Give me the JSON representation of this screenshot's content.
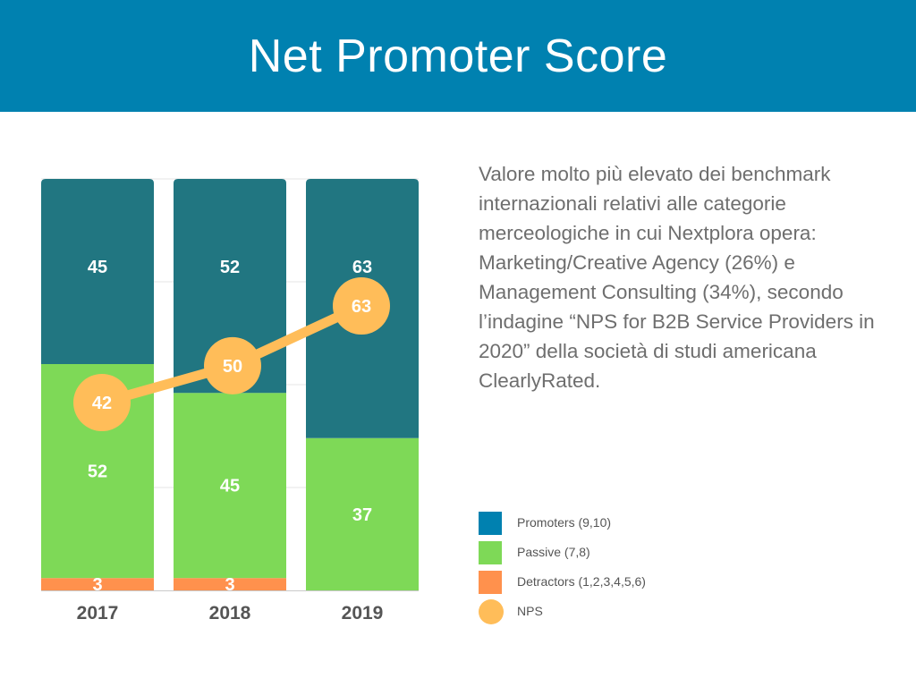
{
  "header": {
    "title": "Net Promoter Score"
  },
  "description": "Valore molto più elevato dei benchmark internazionali relativi alle categorie merceologiche in cui Nextplora opera: Marketing/Creative Agency (26%) e Management Consulting (34%), secondo l’indagine “NPS for B2B Service Providers in 2020” della società di studi americana ClearlyRated.",
  "legend": [
    {
      "label": "Promoters (9,10)",
      "color": "#0081b0",
      "shape": "square"
    },
    {
      "label": "Passive (7,8)",
      "color": "#7ed957",
      "shape": "square"
    },
    {
      "label": "Detractors (1,2,3,4,5,6)",
      "color": "#ff914d",
      "shape": "square"
    },
    {
      "label": "NPS",
      "color": "#ffbd59",
      "shape": "circle"
    }
  ],
  "chart_data": {
    "type": "bar",
    "stacked": true,
    "categories": [
      "2017",
      "2018",
      "2019"
    ],
    "series": [
      {
        "name": "Detractors (1,2,3,4,5,6)",
        "values": [
          3,
          3,
          0
        ],
        "labels": [
          "3",
          "3",
          ""
        ],
        "color": "#ff914d"
      },
      {
        "name": "Passive (7,8)",
        "values": [
          52,
          45,
          37
        ],
        "labels": [
          "52",
          "45",
          "37"
        ],
        "color": "#7ed957"
      },
      {
        "name": "Promoters (9,10)",
        "values": [
          45,
          52,
          63
        ],
        "labels": [
          "45",
          "52",
          "63"
        ],
        "color": "#217681"
      }
    ],
    "nps": {
      "name": "NPS",
      "values": [
        42,
        50,
        63
      ],
      "labels": [
        "42",
        "50",
        "63"
      ],
      "color": "#ffbd59",
      "scale_max": 100
    },
    "ylim": [
      0,
      100
    ],
    "grid": true,
    "legend_position": "right",
    "xlabel": "",
    "ylabel": ""
  }
}
